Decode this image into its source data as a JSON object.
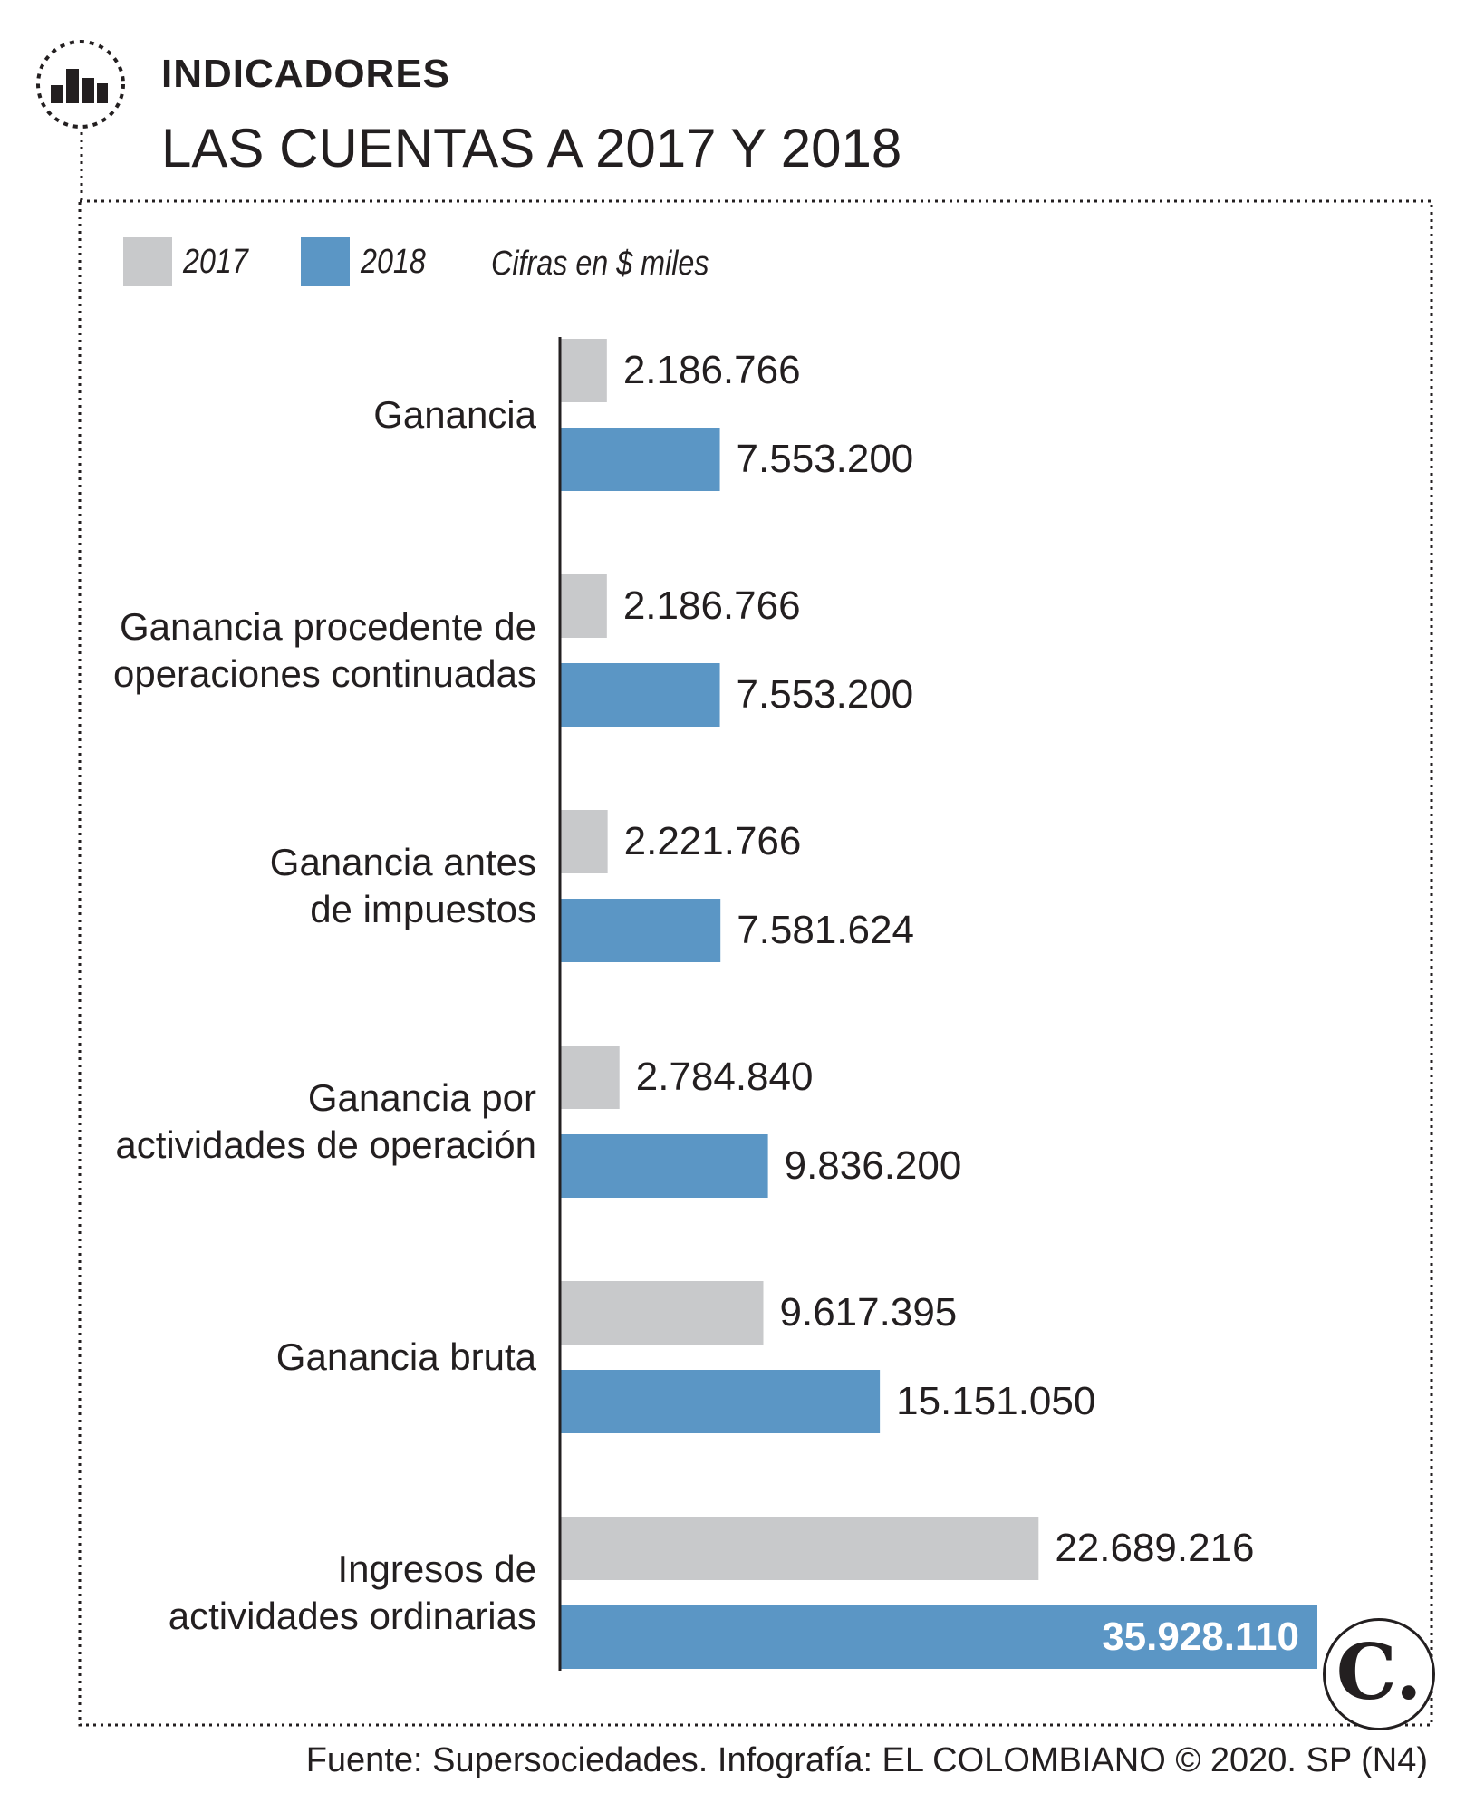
{
  "header": {
    "section_label": "INDICADORES",
    "title": "LAS CUENTAS A 2017 Y 2018",
    "icon": "bar-chart-icon"
  },
  "legend": {
    "items": [
      {
        "label": "2017",
        "color": "#c8c9cb"
      },
      {
        "label": "2018",
        "color": "#5b96c5"
      }
    ],
    "units_note": "Cifras en $ miles"
  },
  "chart_data": {
    "type": "bar",
    "orientation": "horizontal",
    "categories": [
      "Ganancia",
      "Ganancia procedente de operaciones continuadas",
      "Ganancia antes de impuestos",
      "Ganancia por actividades de operación",
      "Ganancia bruta",
      "Ingresos de actividades ordinarias"
    ],
    "category_lines": [
      [
        "Ganancia"
      ],
      [
        "Ganancia procedente de",
        "operaciones continuadas"
      ],
      [
        "Ganancia antes",
        "de impuestos"
      ],
      [
        "Ganancia por",
        "actividades de operación"
      ],
      [
        "Ganancia bruta"
      ],
      [
        "Ingresos de",
        "actividades ordinarias"
      ]
    ],
    "series": [
      {
        "name": "2017",
        "color": "#c8c9cb",
        "values": [
          2186766,
          2186766,
          2221766,
          2784840,
          9617395,
          22689216
        ],
        "labels": [
          "2.186.766",
          "2.186.766",
          "2.221.766",
          "2.784.840",
          "9.617.395",
          "22.689.216"
        ]
      },
      {
        "name": "2018",
        "color": "#5b96c5",
        "values": [
          7553200,
          7553200,
          7581624,
          9836200,
          15151050,
          35928110
        ],
        "labels": [
          "7.553.200",
          "7.553.200",
          "7.581.624",
          "9.836.200",
          "15.151.050",
          "35.928.110"
        ]
      }
    ],
    "xlim": [
      0,
      35928110
    ],
    "grid": false,
    "legend_position": "top-left"
  },
  "logo": {
    "letter": "C."
  },
  "footer": {
    "source": "Fuente: Supersociedades. Infografía: EL COLOMBIANO © 2020. SP (N4)"
  }
}
